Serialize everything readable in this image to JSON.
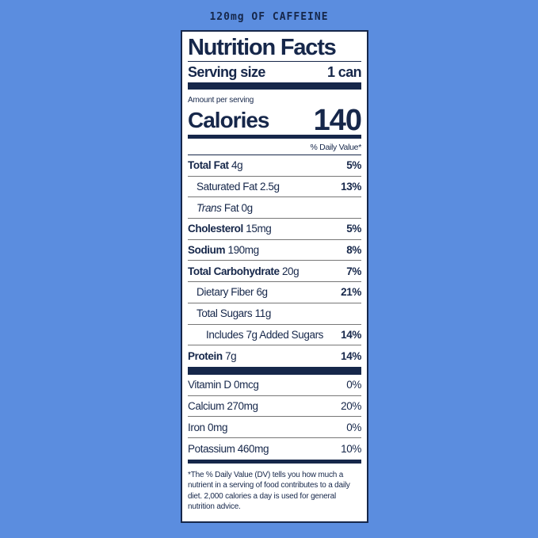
{
  "caffeine_banner": "120mg OF CAFFEINE",
  "label": {
    "title": "Nutrition Facts",
    "serving_size_label": "Serving size",
    "serving_size_value": "1 can",
    "amount_per_serving": "Amount per serving",
    "calories_label": "Calories",
    "calories_value": "140",
    "daily_value_header": "% Daily Value*",
    "nutrients": [
      {
        "name": "Total Fat",
        "amount": "4g",
        "dv": "5%",
        "bold": true,
        "indent": 0
      },
      {
        "name": "Saturated Fat",
        "amount": "2.5g",
        "dv": "13%",
        "bold": false,
        "indent": 1
      },
      {
        "name": "Trans",
        "name_suffix": "Fat",
        "amount": "0g",
        "dv": "",
        "bold": false,
        "indent": 1
      },
      {
        "name": "Cholesterol",
        "amount": "15mg",
        "dv": "5%",
        "bold": true,
        "indent": 0
      },
      {
        "name": "Sodium",
        "amount": "190mg",
        "dv": "8%",
        "bold": true,
        "indent": 0
      },
      {
        "name": "Total Carbohydrate",
        "amount": "20g",
        "dv": "7%",
        "bold": true,
        "indent": 0
      },
      {
        "name": "Dietary Fiber",
        "amount": "6g",
        "dv": "21%",
        "bold": false,
        "indent": 1
      },
      {
        "name": "Total Sugars",
        "amount": "11g",
        "dv": "",
        "bold": false,
        "indent": 1
      },
      {
        "name": "Includes",
        "amount": "7g Added Sugars",
        "dv": "14%",
        "bold": false,
        "indent": 2
      },
      {
        "name": "Protein",
        "amount": "7g",
        "dv": "14%",
        "bold": true,
        "indent": 0
      }
    ],
    "vitamins": [
      {
        "name": "Vitamin D",
        "amount": "0mcg",
        "dv": "0%"
      },
      {
        "name": "Calcium",
        "amount": "270mg",
        "dv": "20%"
      },
      {
        "name": "Iron",
        "amount": "0mg",
        "dv": "0%"
      },
      {
        "name": "Potassium",
        "amount": "460mg",
        "dv": "10%"
      }
    ],
    "footnote": "*The % Daily Value (DV) tells you how much a nutrient in a serving of food contributes to a daily diet. 2,000 calories a day is used for general nutrition advice."
  },
  "colors": {
    "background": "#5b8ddf",
    "ink": "#16274a",
    "panel": "#ffffff"
  }
}
